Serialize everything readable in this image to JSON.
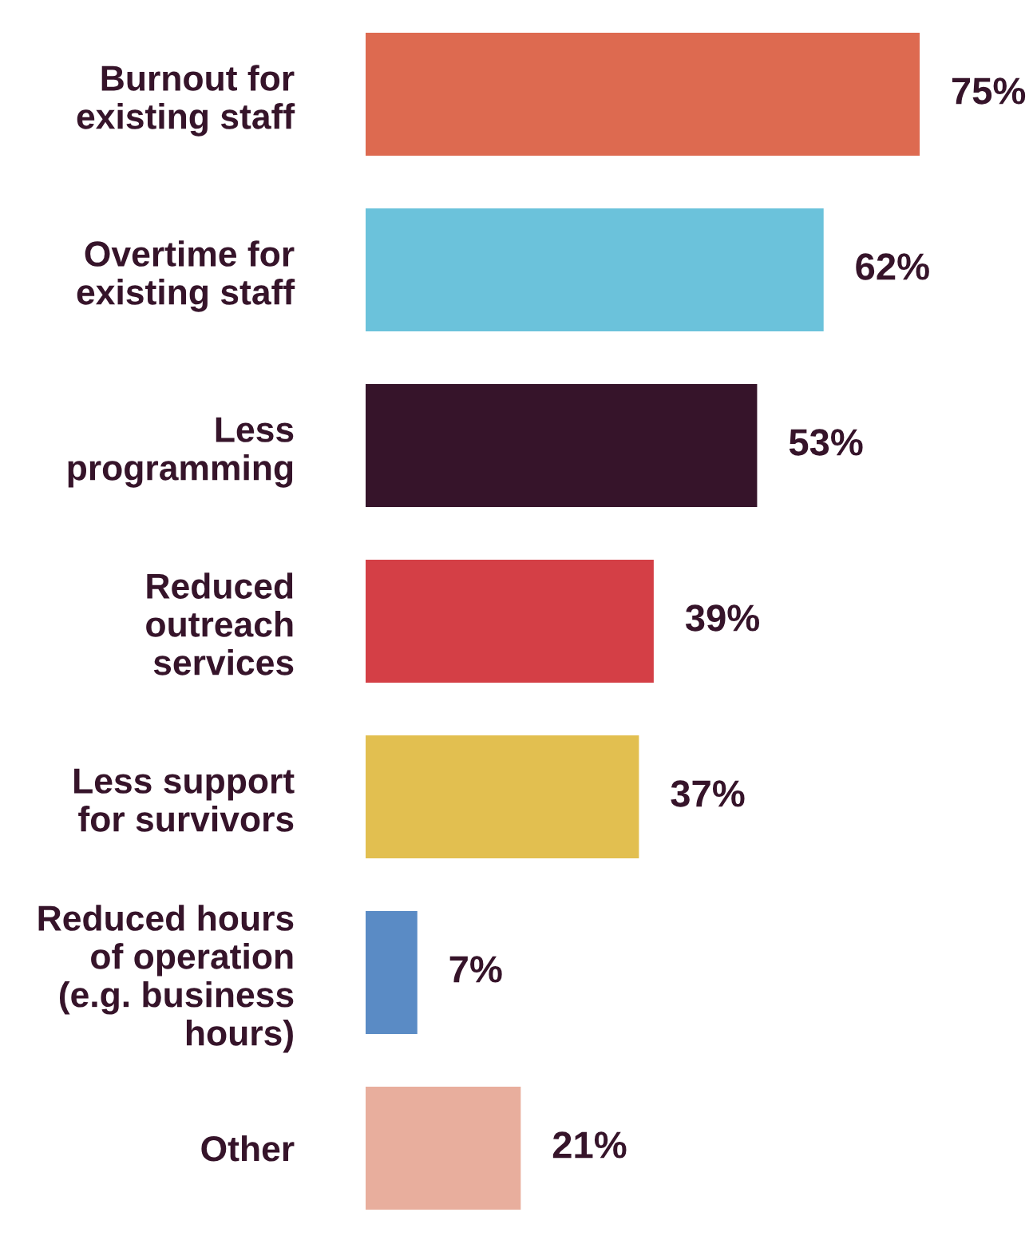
{
  "chart_data": {
    "type": "bar",
    "orientation": "horizontal",
    "categories": [
      "Burnout for\nexisting staff",
      "Overtime for\nexisting staff",
      "Less\nprogramming",
      "Reduced\noutreach\nservices",
      "Less support\nfor survivors",
      "Reduced hours\nof operation\n(e.g. business\nhours)",
      "Other"
    ],
    "values": [
      75,
      62,
      53,
      39,
      37,
      7,
      21
    ],
    "value_labels": [
      "75%",
      "62%",
      "53%",
      "39%",
      "37%",
      "7%",
      "21%"
    ],
    "colors": [
      "#dd6a50",
      "#6bc2db",
      "#36142a",
      "#d43f46",
      "#e2bf50",
      "#5a8bc5",
      "#e8ae9d"
    ]
  }
}
